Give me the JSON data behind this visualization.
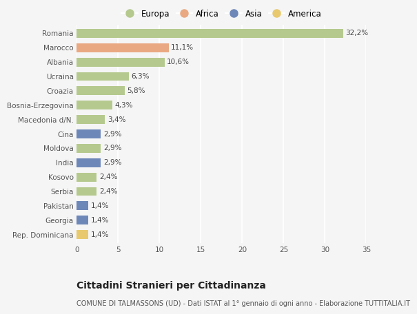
{
  "categories": [
    "Romania",
    "Marocco",
    "Albania",
    "Ucraina",
    "Croazia",
    "Bosnia-Erzegovina",
    "Macedonia d/N.",
    "Cina",
    "Moldova",
    "India",
    "Kosovo",
    "Serbia",
    "Pakistan",
    "Georgia",
    "Rep. Dominicana"
  ],
  "values": [
    32.2,
    11.1,
    10.6,
    6.3,
    5.8,
    4.3,
    3.4,
    2.9,
    2.9,
    2.9,
    2.4,
    2.4,
    1.4,
    1.4,
    1.4
  ],
  "labels": [
    "32,2%",
    "11,1%",
    "10,6%",
    "6,3%",
    "5,8%",
    "4,3%",
    "3,4%",
    "2,9%",
    "2,9%",
    "2,9%",
    "2,4%",
    "2,4%",
    "1,4%",
    "1,4%",
    "1,4%"
  ],
  "continents": [
    "Europa",
    "Africa",
    "Europa",
    "Europa",
    "Europa",
    "Europa",
    "Europa",
    "Asia",
    "Europa",
    "Asia",
    "Europa",
    "Europa",
    "Asia",
    "Asia",
    "America"
  ],
  "continent_colors": {
    "Europa": "#b5c98e",
    "Africa": "#e9a882",
    "Asia": "#6d87b8",
    "America": "#e8c96d"
  },
  "legend_order": [
    "Europa",
    "Africa",
    "Asia",
    "America"
  ],
  "xlim": [
    0,
    35
  ],
  "xticks": [
    0,
    5,
    10,
    15,
    20,
    25,
    30,
    35
  ],
  "title": "Cittadini Stranieri per Cittadinanza",
  "subtitle": "COMUNE DI TALMASSONS (UD) - Dati ISTAT al 1° gennaio di ogni anno - Elaborazione TUTTITALIA.IT",
  "background_color": "#f5f5f5",
  "grid_color": "#ffffff",
  "bar_height": 0.62,
  "label_fontsize": 7.5,
  "tick_fontsize": 7.5,
  "title_fontsize": 10,
  "subtitle_fontsize": 7,
  "legend_fontsize": 8.5
}
